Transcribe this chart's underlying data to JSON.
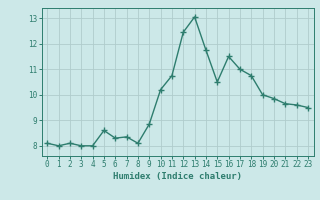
{
  "x": [
    0,
    1,
    2,
    3,
    4,
    5,
    6,
    7,
    8,
    9,
    10,
    11,
    12,
    13,
    14,
    15,
    16,
    17,
    18,
    19,
    20,
    21,
    22,
    23
  ],
  "y": [
    8.1,
    8.0,
    8.1,
    8.0,
    8.0,
    8.6,
    8.3,
    8.35,
    8.1,
    8.85,
    10.2,
    10.75,
    12.45,
    13.05,
    11.75,
    10.5,
    11.5,
    11.0,
    10.75,
    10.0,
    9.85,
    9.65,
    9.6,
    9.5
  ],
  "line_color": "#2e7d6e",
  "marker": "+",
  "marker_size": 4,
  "marker_lw": 1.0,
  "bg_color": "#cce8e8",
  "grid_color": "#b0cccc",
  "xlabel": "Humidex (Indice chaleur)",
  "yticks": [
    8,
    9,
    10,
    11,
    12,
    13
  ],
  "xticks": [
    0,
    1,
    2,
    3,
    4,
    5,
    6,
    7,
    8,
    9,
    10,
    11,
    12,
    13,
    14,
    15,
    16,
    17,
    18,
    19,
    20,
    21,
    22,
    23
  ],
  "xlim": [
    -0.5,
    23.5
  ],
  "ylim": [
    7.6,
    13.4
  ],
  "axis_color": "#2e7d6e",
  "tick_color": "#2e7d6e",
  "label_fontsize": 6.5,
  "tick_fontsize": 5.5,
  "line_width": 1.0
}
